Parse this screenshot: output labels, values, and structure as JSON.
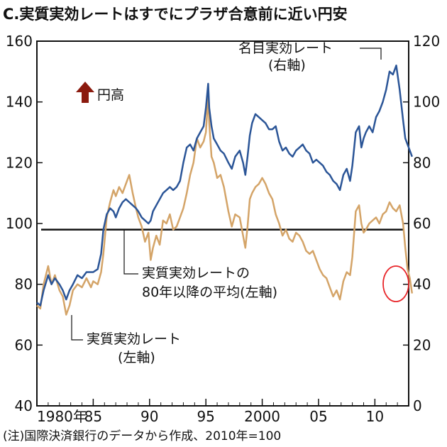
{
  "chart_data": {
    "type": "line",
    "title": "C.実質実効レートはすでにプラザ合意前に近い円安",
    "note": "(注)国際決済銀行のデータから作成、2010年=100",
    "left_axis": {
      "ylim": [
        40,
        160
      ],
      "ticks": [
        "40",
        "60",
        "80",
        "100",
        "120",
        "140",
        "160"
      ]
    },
    "right_axis": {
      "ylim": [
        0,
        120
      ],
      "ticks": [
        "0",
        "20",
        "40",
        "60",
        "80",
        "100",
        "120"
      ]
    },
    "xlim": [
      1980,
      2013
    ],
    "x_ticks": [
      {
        "x": 1980,
        "label": "1980年"
      },
      {
        "x": 1985,
        "label": "85"
      },
      {
        "x": 1990,
        "label": "90"
      },
      {
        "x": 1995,
        "label": "95"
      },
      {
        "x": 2000,
        "label": "2000"
      },
      {
        "x": 2005,
        "label": "05"
      },
      {
        "x": 2010,
        "label": "10"
      }
    ],
    "annotations": {
      "yen_high": "円高",
      "nominal_line1": "名目実効レート",
      "nominal_line2": "(右軸)",
      "average_line1": "実質実効レートの",
      "average_line2": "80年以降の平均(左軸)",
      "real_line1": "実質実効レート",
      "real_line2": "(左軸)"
    },
    "average_value": 98,
    "colors": {
      "real": "#d4a468",
      "nominal": "#2b5597",
      "average": "#111111",
      "circle": "#e8262a",
      "arrow": "#8b1a0e"
    },
    "series": [
      {
        "name": "実質実効レート",
        "axis": "left",
        "x": [
          1980.0,
          1980.3,
          1980.6,
          1981.0,
          1981.3,
          1981.6,
          1982.0,
          1982.3,
          1982.6,
          1982.9,
          1983.2,
          1983.6,
          1984.0,
          1984.4,
          1984.8,
          1985.0,
          1985.4,
          1985.7,
          1985.9,
          1986.2,
          1986.5,
          1986.8,
          1987.0,
          1987.3,
          1987.6,
          1987.9,
          1988.2,
          1988.5,
          1988.8,
          1989.0,
          1989.3,
          1989.6,
          1989.9,
          1990.1,
          1990.3,
          1990.6,
          1990.9,
          1991.2,
          1991.5,
          1991.8,
          1992.1,
          1992.4,
          1992.7,
          1993.0,
          1993.3,
          1993.6,
          1993.9,
          1994.2,
          1994.5,
          1994.8,
          1995.0,
          1995.2,
          1995.3,
          1995.5,
          1995.7,
          1996.0,
          1996.3,
          1996.6,
          1997.0,
          1997.3,
          1997.6,
          1998.0,
          1998.3,
          1998.5,
          1998.7,
          1998.9,
          1999.1,
          1999.4,
          1999.7,
          2000.0,
          2000.3,
          2000.6,
          2000.9,
          2001.2,
          2001.5,
          2001.8,
          2002.1,
          2002.4,
          2002.7,
          2003.0,
          2003.3,
          2003.6,
          2003.9,
          2004.2,
          2004.5,
          2004.8,
          2005.1,
          2005.4,
          2005.7,
          2006.0,
          2006.3,
          2006.6,
          2006.9,
          2007.2,
          2007.5,
          2007.8,
          2008.0,
          2008.3,
          2008.6,
          2008.8,
          2009.0,
          2009.2,
          2009.5,
          2009.8,
          2010.1,
          2010.4,
          2010.7,
          2011.0,
          2011.3,
          2011.6,
          2011.9,
          2012.2,
          2012.5,
          2012.7,
          2012.9,
          2013.1,
          2013.3
        ],
        "values": [
          73,
          72,
          80,
          86,
          80,
          83,
          78,
          76,
          70,
          73,
          78,
          80,
          79,
          82,
          79,
          81,
          80,
          84,
          90,
          102,
          107,
          111,
          109,
          112,
          110,
          113,
          116,
          110,
          105,
          102,
          99,
          94,
          97,
          88,
          92,
          96,
          93,
          101,
          100,
          103,
          98,
          99,
          102,
          105,
          110,
          116,
          120,
          128,
          125,
          127,
          130,
          142,
          133,
          122,
          120,
          115,
          116,
          112,
          104,
          99,
          103,
          102,
          96,
          92,
          99,
          108,
          110,
          112,
          113,
          115,
          113,
          110,
          108,
          103,
          100,
          96,
          98,
          95,
          94,
          97,
          96,
          94,
          91,
          90,
          91,
          88,
          85,
          83,
          82,
          79,
          76,
          78,
          75,
          81,
          84,
          83,
          89,
          104,
          106,
          100,
          97,
          98,
          100,
          101,
          102,
          100,
          103,
          104,
          107,
          105,
          104,
          106,
          100,
          92,
          85,
          82,
          77
        ]
      },
      {
        "name": "名目実効レート",
        "axis": "right",
        "x": [
          1980.0,
          1980.3,
          1980.6,
          1981.0,
          1981.3,
          1981.6,
          1982.0,
          1982.3,
          1982.6,
          1982.9,
          1983.2,
          1983.6,
          1984.0,
          1984.4,
          1984.8,
          1985.0,
          1985.4,
          1985.7,
          1985.9,
          1986.2,
          1986.5,
          1986.8,
          1987.0,
          1987.3,
          1987.6,
          1987.9,
          1988.2,
          1988.5,
          1988.8,
          1989.0,
          1989.3,
          1989.6,
          1989.9,
          1990.1,
          1990.3,
          1990.6,
          1990.9,
          1991.2,
          1991.5,
          1991.8,
          1992.1,
          1992.4,
          1992.7,
          1993.0,
          1993.3,
          1993.6,
          1993.9,
          1994.2,
          1994.5,
          1994.8,
          1995.0,
          1995.2,
          1995.3,
          1995.5,
          1995.7,
          1996.0,
          1996.3,
          1996.6,
          1997.0,
          1997.3,
          1997.6,
          1998.0,
          1998.3,
          1998.5,
          1998.7,
          1998.9,
          1999.1,
          1999.4,
          1999.7,
          2000.0,
          2000.3,
          2000.6,
          2000.9,
          2001.2,
          2001.5,
          2001.8,
          2002.1,
          2002.4,
          2002.7,
          2003.0,
          2003.3,
          2003.6,
          2003.9,
          2004.2,
          2004.5,
          2004.8,
          2005.1,
          2005.4,
          2005.7,
          2006.0,
          2006.3,
          2006.6,
          2006.9,
          2007.2,
          2007.5,
          2007.8,
          2008.0,
          2008.3,
          2008.6,
          2008.8,
          2009.0,
          2009.2,
          2009.5,
          2009.8,
          2010.1,
          2010.4,
          2010.7,
          2011.0,
          2011.3,
          2011.6,
          2011.9,
          2012.2,
          2012.5,
          2012.7,
          2012.9,
          2013.1,
          2013.3
        ],
        "values": [
          34,
          33,
          38,
          43,
          40,
          42,
          40,
          38,
          35,
          38,
          40,
          43,
          42,
          44,
          44,
          44,
          45,
          50,
          58,
          63,
          65,
          64,
          62,
          65,
          67,
          68,
          67,
          66,
          65,
          64,
          62,
          61,
          60,
          61,
          64,
          66,
          68,
          70,
          71,
          72,
          71,
          72,
          74,
          80,
          85,
          86,
          84,
          88,
          90,
          92,
          98,
          106,
          98,
          92,
          88,
          86,
          84,
          83,
          80,
          78,
          82,
          84,
          80,
          76,
          82,
          89,
          93,
          96,
          95,
          94,
          93,
          91,
          91,
          92,
          87,
          84,
          85,
          83,
          82,
          84,
          85,
          86,
          84,
          83,
          80,
          81,
          80,
          79,
          77,
          76,
          74,
          73,
          71,
          76,
          78,
          74,
          79,
          90,
          92,
          85,
          88,
          90,
          92,
          90,
          95,
          97,
          100,
          104,
          110,
          109,
          112,
          104,
          94,
          88,
          86,
          84,
          82
        ]
      }
    ]
  }
}
